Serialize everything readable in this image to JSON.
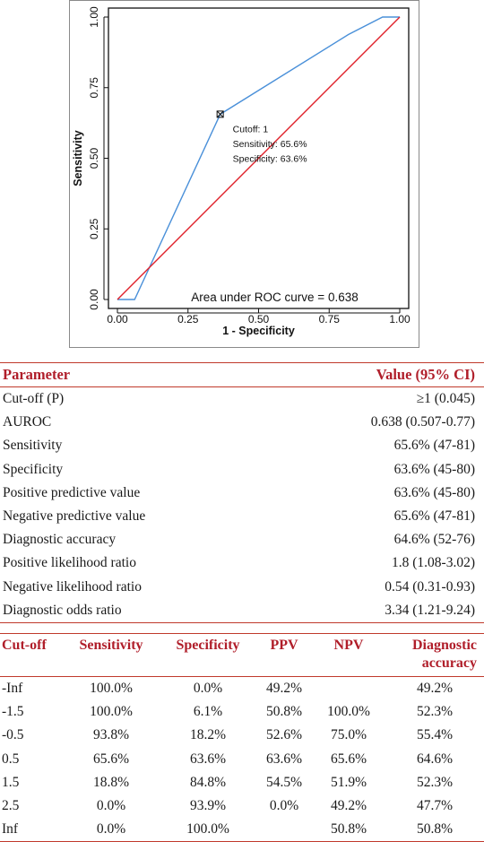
{
  "chart_data": {
    "type": "line",
    "xlabel": "1 - Specificity",
    "ylabel": "Sensitivity",
    "xlim": [
      0,
      1
    ],
    "ylim": [
      0,
      1
    ],
    "x_ticks": [
      "0.00",
      "0.25",
      "0.50",
      "0.75",
      "1.00"
    ],
    "y_ticks": [
      "0.00",
      "0.25",
      "0.50",
      "0.75",
      "1.00"
    ],
    "series": [
      {
        "color": "#4a90d9",
        "x": [
          0.0,
          0.061,
          0.364,
          0.818,
          0.939,
          1.0
        ],
        "y": [
          0.0,
          0.0,
          0.656,
          0.938,
          1.0,
          1.0
        ]
      },
      {
        "color": "#e0212b",
        "x": [
          0,
          1
        ],
        "y": [
          0,
          1
        ]
      }
    ],
    "marker": {
      "x": 0.364,
      "y": 0.656
    },
    "annotation_lines": [
      "Cutoff: 1",
      "Sensitivity: 65.6%",
      "Specificity: 63.6%"
    ],
    "auc_text": "Area under ROC curve =  0.638"
  },
  "param_table": {
    "headers": [
      "Parameter",
      "Value (95% CI)"
    ],
    "rows": [
      [
        "Cut-off (P)",
        "≥1 (0.045)"
      ],
      [
        "AUROC",
        "0.638 (0.507-0.77)"
      ],
      [
        "Sensitivity",
        "65.6% (47-81)"
      ],
      [
        "Specificity",
        "63.6% (45-80)"
      ],
      [
        "Positive predictive value",
        "63.6% (45-80)"
      ],
      [
        "Negative predictive value",
        "65.6% (47-81)"
      ],
      [
        "Diagnostic accuracy",
        "64.6% (52-76)"
      ],
      [
        "Positive likelihood ratio",
        "1.8 (1.08-3.02)"
      ],
      [
        "Negative likelihood ratio",
        "0.54 (0.31-0.93)"
      ],
      [
        "Diagnostic odds ratio",
        "3.34 (1.21-9.24)"
      ]
    ]
  },
  "cutoff_table": {
    "headers": [
      "Cut-off",
      "Sensitivity",
      "Specificity",
      "PPV",
      "NPV",
      "Diagnostic accuracy"
    ],
    "rows": [
      [
        "-Inf",
        "100.0%",
        "0.0%",
        "49.2%",
        "",
        "49.2%"
      ],
      [
        "-1.5",
        "100.0%",
        "6.1%",
        "50.8%",
        "100.0%",
        "52.3%"
      ],
      [
        "-0.5",
        "93.8%",
        "18.2%",
        "52.6%",
        "75.0%",
        "55.4%"
      ],
      [
        "0.5",
        "65.6%",
        "63.6%",
        "63.6%",
        "65.6%",
        "64.6%"
      ],
      [
        "1.5",
        "18.8%",
        "84.8%",
        "54.5%",
        "51.9%",
        "52.3%"
      ],
      [
        "2.5",
        "0.0%",
        "93.9%",
        "0.0%",
        "49.2%",
        "47.7%"
      ],
      [
        "Inf",
        "0.0%",
        "100.0%",
        "",
        "50.8%",
        "50.8%"
      ]
    ]
  }
}
